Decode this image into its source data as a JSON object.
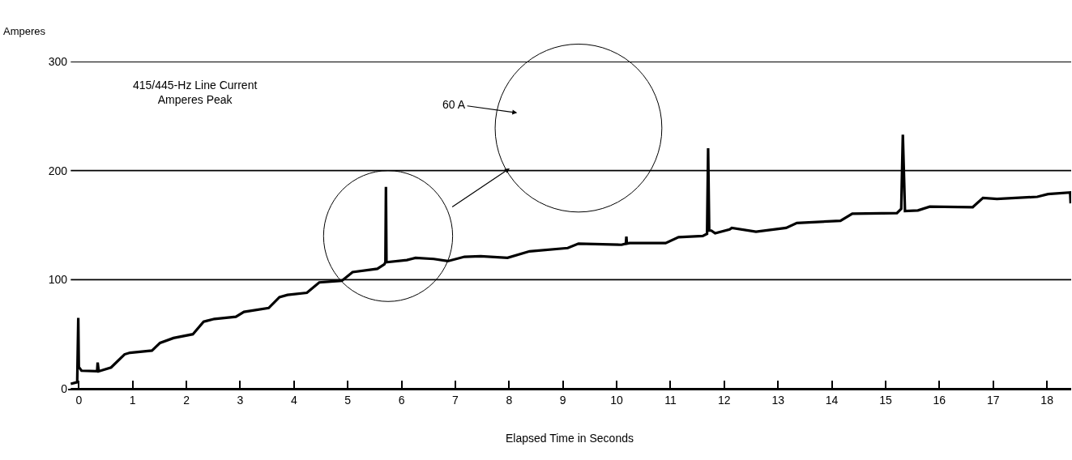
{
  "chart_data": {
    "type": "line",
    "xlabel": "Elapsed Time in Seconds",
    "ylabel": "Amperes",
    "annotations": [
      "415/445-Hz Line Current\nAmperes Peak",
      "60 A"
    ],
    "series": [
      {
        "color": "#000000",
        "x": [
          -0.15,
          -0.03,
          -0.01,
          0,
          0.05,
          0.34,
          0.35,
          0.37,
          0.6,
          0.85,
          0.95,
          1.36,
          1.51,
          1.76,
          2.12,
          2.32,
          2.52,
          2.92,
          3.07,
          3.53,
          3.73,
          3.88,
          4.24,
          4.47,
          4.89,
          5.09,
          5.55,
          5.68,
          5.7,
          5.71,
          5.72,
          6.1,
          6.26,
          6.6,
          6.86,
          7.17,
          7.47,
          7.97,
          8.38,
          9.09,
          9.29,
          10.09,
          10.17,
          10.18,
          10.19,
          10.24,
          10.91,
          11.15,
          11.6,
          11.68,
          11.7,
          11.72,
          11.76,
          11.83,
          12.1,
          12.14,
          12.59,
          13.15,
          13.35,
          14.16,
          14.38,
          15.21,
          15.29,
          15.32,
          15.36,
          15.6,
          15.82,
          16.62,
          16.81,
          17.07,
          17.82,
          18.02,
          18.43,
          18.44
        ],
        "values": [
          4.5,
          6,
          65,
          20,
          16.5,
          16,
          24,
          16,
          19.5,
          31.5,
          33,
          35,
          42,
          46.5,
          50,
          61.5,
          64,
          66,
          70.5,
          74,
          84,
          86,
          88,
          97.5,
          99,
          107,
          110,
          114,
          116,
          185,
          116,
          118,
          120,
          119,
          117,
          121,
          121.5,
          120,
          126,
          129,
          133,
          132,
          133,
          139.5,
          133,
          133.5,
          133.5,
          139,
          140,
          142,
          220.5,
          145,
          145,
          142.5,
          146,
          147.5,
          144,
          147.5,
          152,
          154,
          160.5,
          161,
          165,
          233,
          163,
          163.5,
          167,
          166.5,
          175,
          174,
          176,
          178.5,
          180,
          170
        ]
      }
    ],
    "xlim": [
      -0.2,
      18.45
    ],
    "xticks": [
      0,
      1,
      2,
      3,
      4,
      5,
      6,
      7,
      8,
      9,
      10,
      11,
      12,
      13,
      14,
      15,
      16,
      17,
      18
    ],
    "ylim": [
      0,
      300
    ],
    "yticks": [
      0,
      100,
      200,
      300
    ],
    "grid": "y",
    "marker": "none",
    "line_style": "solid"
  }
}
